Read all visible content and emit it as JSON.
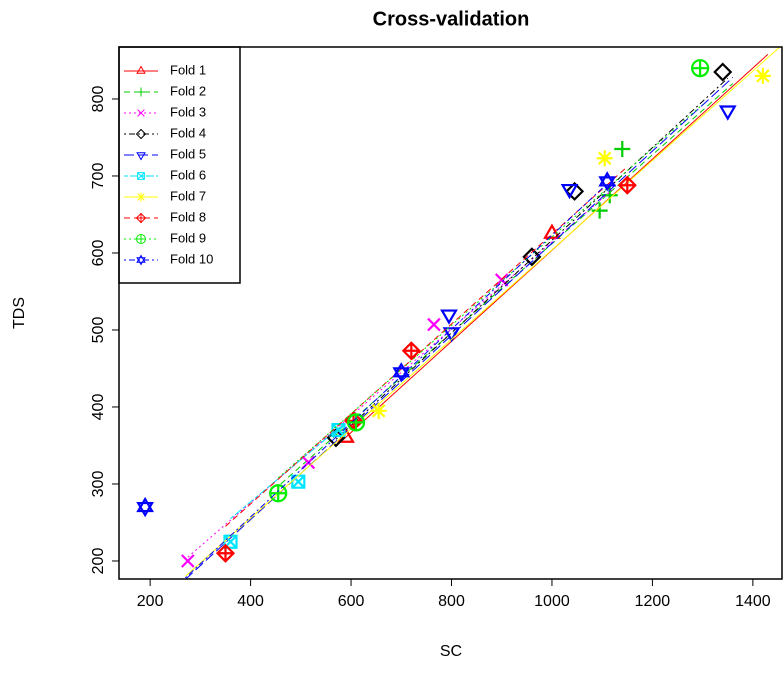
{
  "chart_data": {
    "type": "scatter",
    "title": "Cross-validation",
    "x_label": "SC",
    "y_label": "TDS",
    "xlim": [
      138,
      1458
    ],
    "ylim": [
      176.6,
      867.5
    ],
    "xticks": [
      200,
      400,
      600,
      800,
      1000,
      1200,
      1400
    ],
    "yticks": [
      200,
      300,
      400,
      500,
      600,
      700,
      800
    ],
    "legend": "top-left",
    "series": [
      {
        "name": "Fold 1",
        "color": "#ff0000",
        "marker": "triangle",
        "linestyle": "solid",
        "x": [
          590,
          1000
        ],
        "values": [
          360,
          625
        ],
        "fit_x": [
          580,
          1430
        ],
        "fit_y": [
          355,
          858
        ]
      },
      {
        "name": "Fold 2",
        "color": "#00cd00",
        "marker": "plus",
        "linestyle": "dashed",
        "x": [
          1095,
          1140,
          1115
        ],
        "values": [
          655,
          735,
          675
        ],
        "fit_x": [
          460,
          1360
        ],
        "fit_y": [
          300,
          820
        ]
      },
      {
        "name": "Fold 3",
        "color": "#ff00ff",
        "marker": "cross",
        "linestyle": "dotted",
        "x": [
          275,
          515,
          765,
          900
        ],
        "values": [
          200,
          328,
          507,
          565
        ],
        "fit_x": [
          275,
          1120
        ],
        "fit_y": [
          205,
          682
        ]
      },
      {
        "name": "Fold 4",
        "color": "#000000",
        "marker": "diamond",
        "linestyle": "dotdash",
        "x": [
          1045,
          960,
          1340,
          570
        ],
        "values": [
          680,
          595,
          835,
          360
        ],
        "fit_x": [
          570,
          1350
        ],
        "fit_y": [
          358,
          827
        ]
      },
      {
        "name": "Fold 5",
        "color": "#0000ff",
        "marker": "down-triangle",
        "linestyle": "longdash",
        "x": [
          1350,
          795,
          800,
          1035
        ],
        "values": [
          785,
          520,
          497,
          683
        ],
        "fit_x": [
          270,
          1360
        ],
        "fit_y": [
          176,
          828
        ]
      },
      {
        "name": "Fold 6",
        "color": "#00e5ff",
        "marker": "square-cross",
        "linestyle": "twodash",
        "x": [
          360,
          495,
          575
        ],
        "values": [
          225,
          303,
          370
        ],
        "fit_x": [
          360,
          580
        ],
        "fit_y": [
          255,
          375
        ]
      },
      {
        "name": "Fold 7",
        "color": "#ffff00",
        "marker": "star",
        "linestyle": "solid",
        "x": [
          1420,
          655,
          1105
        ],
        "values": [
          830,
          395,
          723
        ],
        "fit_x": [
          270,
          1458
        ],
        "fit_y": [
          180,
          870
        ]
      },
      {
        "name": "Fold 8",
        "color": "#ff0000",
        "marker": "diamond-plus",
        "linestyle": "dashed",
        "x": [
          350,
          720,
          1150,
          605
        ],
        "values": [
          210,
          473,
          688,
          382
        ],
        "fit_x": [
          350,
          1150
        ],
        "fit_y": [
          245,
          712
        ]
      },
      {
        "name": "Fold 9",
        "color": "#00ee00",
        "marker": "circle-plus",
        "linestyle": "dotted",
        "x": [
          455,
          1295,
          610
        ],
        "values": [
          288,
          840,
          380
        ],
        "fit_x": [
          455,
          1300
        ],
        "fit_y": [
          308,
          793
        ]
      },
      {
        "name": "Fold 10",
        "color": "#0000ff",
        "marker": "star-of-david",
        "linestyle": "dotdash",
        "x": [
          190,
          700,
          1110
        ],
        "values": [
          270,
          445,
          693
        ],
        "fit_x": [
          270,
          1110
        ],
        "fit_y": [
          178,
          690
        ]
      }
    ]
  }
}
